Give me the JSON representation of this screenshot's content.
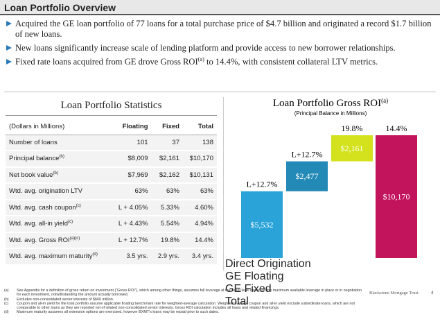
{
  "header": {
    "title": "Loan Portfolio Overview"
  },
  "bullets": [
    {
      "text": "Acquired the GE loan portfolio of 77 loans for a total purchase price of $4.7 billion and originated a record $1.7 billion of new loans."
    },
    {
      "text": "New loans significantly increase scale of lending platform and provide access to new borrower relationships."
    },
    {
      "text": "Fixed rate loans acquired from GE drove Gross ROI",
      "sup": "(a)",
      "text_after": " to 14.4%, with consistent collateral LTV metrics."
    }
  ],
  "table": {
    "title": "Loan Portfolio Statistics",
    "columns": [
      "(Dollars in Millions)",
      "Floating",
      "Fixed",
      "Total"
    ],
    "rows": [
      {
        "label": "Number of loans",
        "cells": [
          "101",
          "37",
          "138"
        ]
      },
      {
        "label": "Principal balance",
        "sup": "(b)",
        "cells": [
          "$8,009",
          "$2,161",
          "$10,170"
        ]
      },
      {
        "label": "Net book value",
        "sup": "(b)",
        "cells": [
          "$7,969",
          "$2,162",
          "$10,131"
        ]
      },
      {
        "label": "Wtd. avg. origination LTV",
        "cells": [
          "63%",
          "63%",
          "63%"
        ]
      },
      {
        "label": "Wtd. avg. cash coupon",
        "sup": "(c)",
        "cells": [
          "L + 4.05%",
          "5.33%",
          "4.60%"
        ]
      },
      {
        "label": "Wtd. avg. all-in yield",
        "sup": "(c)",
        "cells": [
          "L + 4.43%",
          "5.54%",
          "4.94%"
        ]
      },
      {
        "label": "Wtd. avg. Gross ROI",
        "sup": "(a)(c)",
        "cells": [
          "L + 12.7%",
          "19.8%",
          "14.4%"
        ]
      },
      {
        "label": "Wtd. avg. maximum maturity",
        "sup": "(d)",
        "cells": [
          "3.5 yrs.",
          "2.9 yrs.",
          "3.4 yrs."
        ]
      }
    ]
  },
  "chart_data": {
    "type": "waterfall",
    "title": "Loan Portfolio Gross ROI",
    "title_sup": "(a)",
    "subtitle": "(Principal Balance in Millions)",
    "categories": [
      "Direct Origination",
      "GE Floating",
      "GE Fixed",
      "Total"
    ],
    "values": [
      5532,
      2477,
      2161,
      10170
    ],
    "value_labels": [
      "$5,532",
      "$2,477",
      "$2,161",
      "$10,170"
    ],
    "roi_labels": [
      "L+12.7%",
      "L+12.7%",
      "19.8%",
      "14.4%"
    ],
    "colors": [
      "#2aa3d8",
      "#2389b6",
      "#d3e21c",
      "#c2135d"
    ],
    "total_index": 3
  },
  "footnotes": [
    {
      "marker": "(a)",
      "text": "See Appendix for a definition of gross return on investment (“Gross ROI”), which among other things, assumes full leverage at the asset level based on the maximum available leverage in place or in negotiation for each investment, notwithstanding the amount actually borrowed."
    },
    {
      "marker": "(b)",
      "text": "Excludes non-consolidated senior interests of $660 million."
    },
    {
      "marker": "(c)",
      "text": "Coupon and all-in yield for the total portfolio assume applicable floating benchmark rate for weighted-average calculation. Weighted average coupon and all-in yield exclude subordinate loans, which are not comparable to other loans as they are reported net of related non-consolidated senior interests. Gross ROI calculation includes all loans and related financings."
    },
    {
      "marker": "(d)",
      "text": "Maximum maturity assumes all extension options are exercised, however BXMT's loans may be repaid prior to such dates."
    }
  ],
  "footer": {
    "brand": "Blackstone Mortgage Trust",
    "page": "4"
  }
}
